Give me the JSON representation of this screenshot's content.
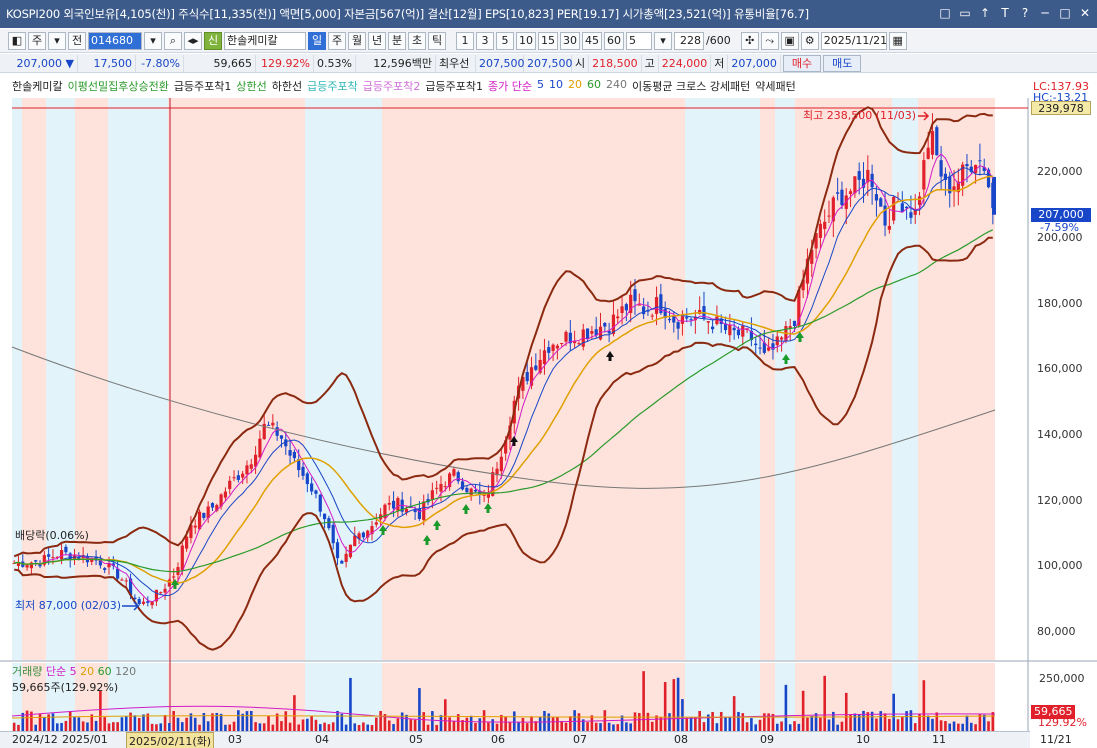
{
  "titlebar": {
    "text": "KOSPI200 외국인보유[4,105(천)] 주식수[11,335(천)] 액면[5,000] 자본금[567(억)] 결산[12월] EPS[10,823] PER[19.17] 시가총액[23,521(억)] 유통비율[76.7]",
    "window_buttons": [
      "□",
      "▭",
      "↑",
      "T",
      "?",
      "─",
      "□",
      "✕"
    ]
  },
  "toolbar1": {
    "market": "주",
    "prev_label": "전",
    "code": "014680",
    "stock_badge": "신",
    "stock_name": "한솔케미칼",
    "periods": [
      "일",
      "주",
      "월",
      "년",
      "분",
      "초",
      "틱"
    ],
    "selected_period": "일",
    "intervals": [
      "1",
      "3",
      "5",
      "10",
      "15",
      "30",
      "45",
      "60"
    ],
    "interval_value": "5",
    "count": "228",
    "count_total": "/600",
    "date": "2025/11/21"
  },
  "toolbar2": {
    "price": "207,000",
    "change": "17,500",
    "change_pct": "-7.80%",
    "volume": "59,665",
    "vol_ratio": "129.92%",
    "turnover": "0.53%",
    "amount": "12,596백만",
    "best_sell_label": "최우선",
    "best_sell": "207,500",
    "best_buy": "207,500",
    "open_label": "시",
    "open": "218,500",
    "high_label": "고",
    "high": "224,000",
    "low_label": "저",
    "low": "207,000",
    "buy_label": "매수",
    "sell_label": "매도"
  },
  "legend": {
    "items": [
      {
        "text": "한솔케미칼",
        "color": "#222222"
      },
      {
        "text": "이평선밀집후상승전환",
        "color": "#2a9a2a"
      },
      {
        "text": "급등주포착1",
        "color": "#222222"
      },
      {
        "text": "상한선",
        "color": "#2a9a2a"
      },
      {
        "text": "하한선",
        "color": "#222222"
      },
      {
        "text": "급등주포착",
        "color": "#32b7b7"
      },
      {
        "text": "급등주포착2",
        "color": "#cf6fd8"
      },
      {
        "text": "급등주포착1",
        "color": "#222222"
      },
      {
        "text": "종가 단순",
        "color": "#d21cc8"
      },
      {
        "text": "5",
        "color": "#1846c8"
      },
      {
        "text": "10",
        "color": "#1846c8"
      },
      {
        "text": "20",
        "color": "#e0a000"
      },
      {
        "text": "60",
        "color": "#2a9a2a"
      },
      {
        "text": "240",
        "color": "#777777"
      },
      {
        "text": "이동평균 크로스 강세패턴",
        "color": "#222222"
      },
      {
        "text": "약세패턴",
        "color": "#222222"
      }
    ]
  },
  "price_axis": {
    "ticks": [
      "220,000",
      "200,000",
      "180,000",
      "160,000",
      "140,000",
      "120,000",
      "100,000",
      "80,000"
    ],
    "lc_label": "LC:137.93",
    "hc_label": "HC:-13.21",
    "top_tag": "239,978",
    "current_tag": "207,000",
    "current_pct": "-7.59%"
  },
  "annotations": {
    "high_label": "최고 238,500 (11/03)",
    "low_label": "최저 87,000 (02/03)",
    "dividend_label": "배당락(0.06%)"
  },
  "volume_panel": {
    "legend_title": "거래량",
    "legend_ma": [
      "단순 5",
      "20",
      "60",
      "120"
    ],
    "value_text": "59,665주(129.92%)",
    "axis_top": "250,000",
    "current_tag": "59,665",
    "current_pct": "129.92%"
  },
  "dates": {
    "labels": [
      "2024/12",
      "2025/01",
      "2025/02/11(화)",
      "03",
      "04",
      "05",
      "06",
      "07",
      "08",
      "09",
      "10",
      "11",
      "11/21"
    ]
  },
  "colors": {
    "up": "#e0202a",
    "down": "#1846c8",
    "band": "#8b2a10",
    "ma5": "#1846c8",
    "ma20": "#e0a000",
    "ma60": "#2a9a2a",
    "ma240": "#777777",
    "shade_red": "#fde3dc",
    "shade_blue": "#e2f4fa"
  }
}
